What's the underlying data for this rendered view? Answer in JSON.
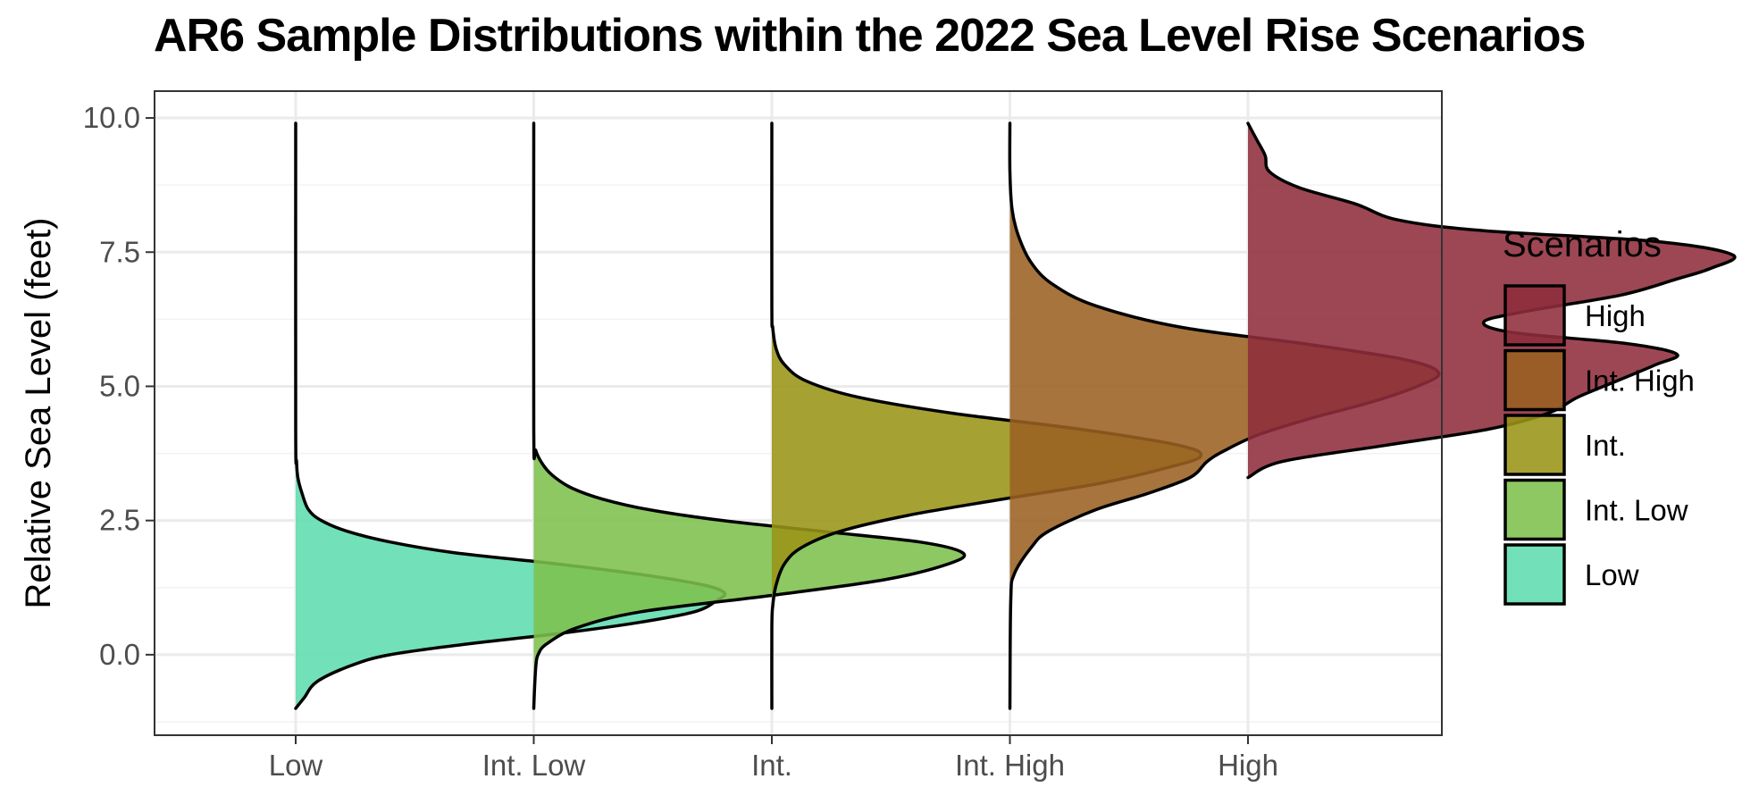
{
  "chart_data": {
    "type": "violin",
    "title": "AR6 Sample Distributions within the 2022 Sea Level Rise Scenarios",
    "xlabel": "",
    "ylabel": "Relative Sea Level (feet)",
    "categories": [
      "Low",
      "Int. Low",
      "Int.",
      "Int. High",
      "High"
    ],
    "ylim": [
      -1.5,
      10.5
    ],
    "yticks": [
      0.0,
      2.5,
      5.0,
      7.5,
      10.0
    ],
    "ytick_labels": [
      "0.0",
      "2.5",
      "5.0",
      "7.5",
      "10.0"
    ],
    "grid": true,
    "legend": {
      "title": "Scenarios",
      "placement": "right",
      "entries": [
        "High",
        "Int. High",
        "Int.",
        "Int. Low",
        "Low"
      ]
    },
    "series": [
      {
        "name": "Low",
        "color": "#5fdcae",
        "y_range": [
          -1.0,
          9.9
        ],
        "density": [
          [
            -1.0,
            0.0
          ],
          [
            -0.8,
            0.02
          ],
          [
            -0.5,
            0.05
          ],
          [
            -0.2,
            0.13
          ],
          [
            0.0,
            0.22
          ],
          [
            0.2,
            0.4
          ],
          [
            0.4,
            0.62
          ],
          [
            0.6,
            0.8
          ],
          [
            0.8,
            0.93
          ],
          [
            1.0,
            0.98
          ],
          [
            1.15,
            1.0
          ],
          [
            1.3,
            0.95
          ],
          [
            1.5,
            0.8
          ],
          [
            1.7,
            0.6
          ],
          [
            1.9,
            0.37
          ],
          [
            2.1,
            0.22
          ],
          [
            2.3,
            0.12
          ],
          [
            2.5,
            0.06
          ],
          [
            2.7,
            0.03
          ],
          [
            3.0,
            0.015
          ],
          [
            3.3,
            0.005
          ],
          [
            3.6,
            0.002
          ],
          [
            4.2,
            0.0
          ],
          [
            9.9,
            0.0
          ]
        ]
      },
      {
        "name": "Int. Low",
        "color": "#7dc04c",
        "y_range": [
          -1.0,
          9.9
        ],
        "density": [
          [
            -1.0,
            0.0
          ],
          [
            -0.6,
            0.002
          ],
          [
            -0.2,
            0.005
          ],
          [
            0.0,
            0.01
          ],
          [
            0.2,
            0.03
          ],
          [
            0.5,
            0.1
          ],
          [
            0.8,
            0.25
          ],
          [
            1.1,
            0.55
          ],
          [
            1.4,
            0.82
          ],
          [
            1.7,
            0.97
          ],
          [
            1.9,
            1.0
          ],
          [
            2.1,
            0.9
          ],
          [
            2.3,
            0.67
          ],
          [
            2.5,
            0.44
          ],
          [
            2.7,
            0.27
          ],
          [
            2.9,
            0.16
          ],
          [
            3.1,
            0.09
          ],
          [
            3.3,
            0.05
          ],
          [
            3.5,
            0.025
          ],
          [
            3.8,
            0.005
          ],
          [
            4.2,
            0.0
          ],
          [
            9.9,
            0.0
          ]
        ]
      },
      {
        "name": "Int.",
        "color": "#9a9417",
        "y_range": [
          -1.0,
          9.9
        ],
        "density": [
          [
            -1.0,
            0.0
          ],
          [
            0.5,
            0.0
          ],
          [
            0.9,
            0.002
          ],
          [
            1.3,
            0.01
          ],
          [
            1.7,
            0.03
          ],
          [
            2.0,
            0.07
          ],
          [
            2.3,
            0.16
          ],
          [
            2.6,
            0.32
          ],
          [
            2.9,
            0.54
          ],
          [
            3.2,
            0.77
          ],
          [
            3.5,
            0.93
          ],
          [
            3.7,
            1.0
          ],
          [
            3.9,
            0.95
          ],
          [
            4.2,
            0.72
          ],
          [
            4.5,
            0.42
          ],
          [
            4.8,
            0.2
          ],
          [
            5.1,
            0.08
          ],
          [
            5.4,
            0.03
          ],
          [
            5.7,
            0.01
          ],
          [
            6.1,
            0.002
          ],
          [
            6.5,
            0.0
          ],
          [
            9.9,
            0.0
          ]
        ]
      },
      {
        "name": "Int. High",
        "color": "#9a6121",
        "y_range": [
          -1.0,
          9.9
        ],
        "density": [
          [
            -1.0,
            0.0
          ],
          [
            1.0,
            0.002
          ],
          [
            1.5,
            0.01
          ],
          [
            2.0,
            0.05
          ],
          [
            2.3,
            0.09
          ],
          [
            2.7,
            0.2
          ],
          [
            3.0,
            0.32
          ],
          [
            3.3,
            0.42
          ],
          [
            3.6,
            0.46
          ],
          [
            3.8,
            0.5
          ],
          [
            4.1,
            0.58
          ],
          [
            4.4,
            0.7
          ],
          [
            4.7,
            0.84
          ],
          [
            5.0,
            0.95
          ],
          [
            5.25,
            1.0
          ],
          [
            5.5,
            0.92
          ],
          [
            5.8,
            0.68
          ],
          [
            6.1,
            0.4
          ],
          [
            6.5,
            0.2
          ],
          [
            6.9,
            0.1
          ],
          [
            7.3,
            0.05
          ],
          [
            7.8,
            0.02
          ],
          [
            8.3,
            0.005
          ],
          [
            9.0,
            0.0
          ],
          [
            9.9,
            0.0
          ]
        ]
      },
      {
        "name": "High",
        "color": "#8e2d3b",
        "y_range": [
          3.3,
          9.9
        ],
        "density": [
          [
            3.3,
            0.0
          ],
          [
            3.6,
            0.08
          ],
          [
            3.9,
            0.32
          ],
          [
            4.2,
            0.56
          ],
          [
            4.5,
            0.7
          ],
          [
            4.8,
            0.77
          ],
          [
            5.1,
            0.86
          ],
          [
            5.4,
            0.95
          ],
          [
            5.6,
            1.0
          ],
          [
            5.8,
            0.88
          ],
          [
            6.0,
            0.62
          ],
          [
            6.2,
            0.55
          ],
          [
            6.4,
            0.65
          ],
          [
            6.7,
            0.87
          ],
          [
            7.0,
            1.0
          ],
          [
            7.2,
            1.08
          ],
          [
            7.45,
            1.13
          ],
          [
            7.7,
            0.95
          ],
          [
            7.9,
            0.55
          ],
          [
            8.1,
            0.35
          ],
          [
            8.4,
            0.25
          ],
          [
            8.7,
            0.12
          ],
          [
            9.0,
            0.05
          ],
          [
            9.3,
            0.04
          ],
          [
            9.6,
            0.02
          ],
          [
            9.9,
            0.0
          ]
        ]
      }
    ]
  }
}
